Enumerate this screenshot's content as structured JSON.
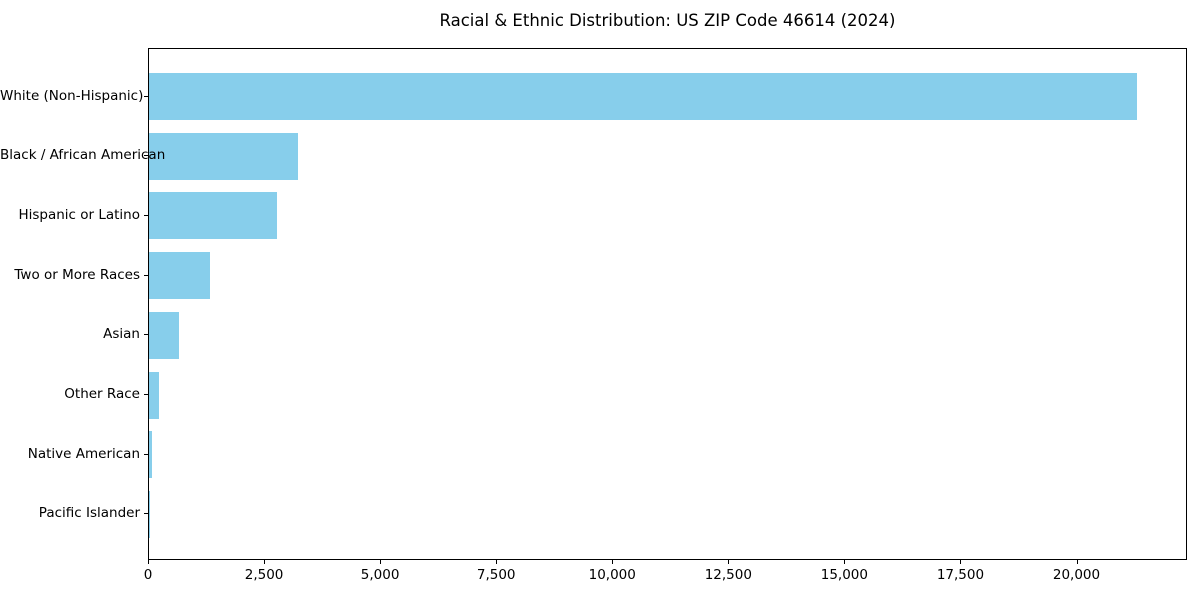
{
  "figure": {
    "title": "Racial & Ethnic Distribution: US ZIP Code 46614 (2024)"
  },
  "chart_data": {
    "type": "bar",
    "orientation": "horizontal",
    "title": "Racial & Ethnic Distribution: US ZIP Code 46614 (2024)",
    "categories": [
      "White (Non-Hispanic)",
      "Black / African American",
      "Hispanic or Latino",
      "Two or More Races",
      "Asian",
      "Other Race",
      "Native American",
      "Pacific Islander"
    ],
    "values": [
      21285,
      3210,
      2750,
      1315,
      650,
      225,
      75,
      15
    ],
    "xlabel": "",
    "ylabel": "",
    "xlim": [
      0,
      22380
    ],
    "x_ticks": [
      0,
      2500,
      5000,
      7500,
      10000,
      12500,
      15000,
      17500,
      20000
    ],
    "x_tick_labels": [
      "0",
      "2,500",
      "5,000",
      "7,500",
      "10,000",
      "12,500",
      "15,000",
      "17,500",
      "20,000"
    ],
    "bar_color": "#87CEEB",
    "background_color": "#FFFFFF",
    "axis_color": "#000000",
    "grid": false,
    "legend": "none"
  }
}
